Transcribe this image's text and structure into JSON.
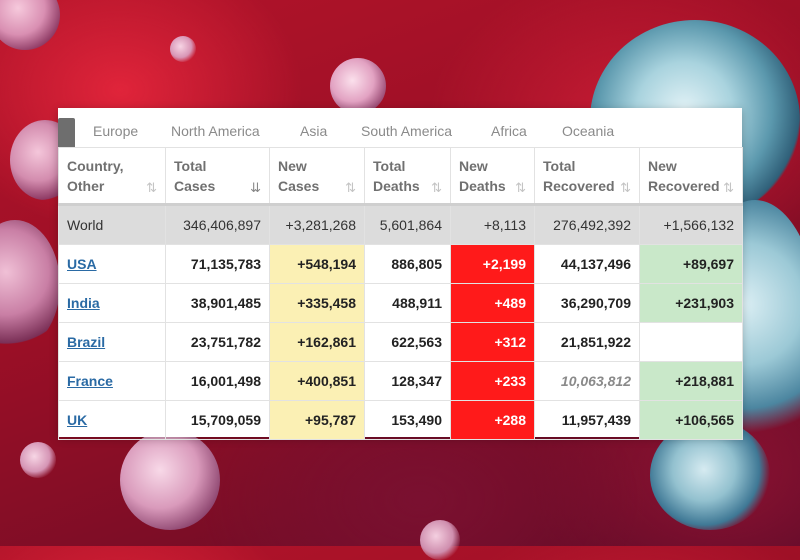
{
  "tabs": [
    "Europe",
    "North America",
    "Asia",
    "South America",
    "Africa",
    "Oceania"
  ],
  "headers": [
    {
      "line1": "Country,",
      "line2": "Other"
    },
    {
      "line1": "Total",
      "line2": "Cases"
    },
    {
      "line1": "New",
      "line2": "Cases"
    },
    {
      "line1": "Total",
      "line2": "Deaths"
    },
    {
      "line1": "New",
      "line2": "Deaths"
    },
    {
      "line1": "Total",
      "line2": "Recovered"
    },
    {
      "line1": "New",
      "line2": "Recovered"
    }
  ],
  "sort_icons": {
    "default": "⇅",
    "active": "⇊"
  },
  "world": {
    "country": "World",
    "total_cases": "346,406,897",
    "new_cases": "+3,281,268",
    "total_deaths": "5,601,864",
    "new_deaths": "+8,113",
    "total_recovered": "276,492,392",
    "new_recovered": "+1,566,132"
  },
  "rows": [
    {
      "country": "USA",
      "total_cases": "71,135,783",
      "new_cases": "+548,194",
      "total_deaths": "886,805",
      "new_deaths": "+2,199",
      "total_recovered": "44,137,496",
      "new_recovered": "+89,697"
    },
    {
      "country": "India",
      "total_cases": "38,901,485",
      "new_cases": "+335,458",
      "total_deaths": "488,911",
      "new_deaths": "+489",
      "total_recovered": "36,290,709",
      "new_recovered": "+231,903"
    },
    {
      "country": "Brazil",
      "total_cases": "23,751,782",
      "new_cases": "+162,861",
      "total_deaths": "622,563",
      "new_deaths": "+312",
      "total_recovered": "21,851,922",
      "new_recovered": ""
    },
    {
      "country": "France",
      "total_cases": "16,001,498",
      "new_cases": "+400,851",
      "total_deaths": "128,347",
      "new_deaths": "+233",
      "total_recovered": "10,063,812",
      "new_recovered": "+218,881"
    },
    {
      "country": "UK",
      "total_cases": "15,709,059",
      "new_cases": "+95,787",
      "total_deaths": "153,490",
      "new_deaths": "+288",
      "total_recovered": "11,957,439",
      "new_recovered": "+106,565"
    }
  ],
  "colors": {
    "new_cases_bg": "#fbf0b4",
    "new_deaths_bg": "#ff1a1a",
    "new_recovered_bg": "#c9e8c9",
    "world_row_bg": "#dcdcdc",
    "link": "#2a6aa4"
  }
}
